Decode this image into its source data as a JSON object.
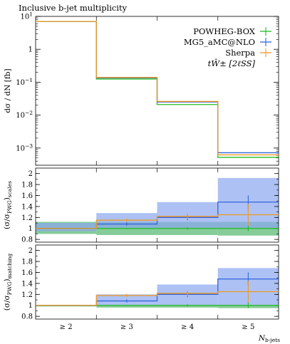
{
  "title": "Inclusive b-jet multiplicity",
  "colors": {
    "POWHEG-BOX": "#22bb22",
    "MG5_aMC@NLO": "#3366dd",
    "Sherpa": "#ee9922",
    "scale_band_green": "#33aa55",
    "scale_band_blue": "#8aa6f0"
  },
  "x_tick_labels": [
    "≥ 2",
    "≥ 3",
    "≥ 4",
    "≥ 5"
  ],
  "x_axis_label": "N",
  "x_axis_label_sub": "b-jets",
  "legend": {
    "entries": [
      "POWHEG-BOX",
      "MG5_aMC@NLO",
      "Sherpa"
    ],
    "process_label": "tW̄± [2ℓSS]",
    "placement": "top-right"
  },
  "chart_data": [
    {
      "type": "step",
      "panel": "main",
      "ylabel": "dσ / dN [fb]",
      "yscale": "log",
      "ylim": [
        0.0003,
        10
      ],
      "y_tick_labels": [
        "10^1",
        "1",
        "10^−1",
        "10^−2",
        "10^−3"
      ],
      "categories": [
        "≥ 2",
        "≥ 3",
        "≥ 4",
        "≥ 5"
      ],
      "series": [
        {
          "name": "POWHEG-BOX",
          "values": [
            7.0,
            0.125,
            0.021,
            0.00052
          ]
        },
        {
          "name": "MG5_aMC@NLO",
          "values": [
            7.0,
            0.135,
            0.025,
            0.00072
          ]
        },
        {
          "name": "Sherpa",
          "values": [
            7.0,
            0.14,
            0.026,
            0.00062
          ]
        }
      ]
    },
    {
      "type": "step",
      "panel": "ratio_scales",
      "ylabel_prefix": "(σ/σ",
      "ylabel_sub1": "PWG",
      "ylabel_mid": ")",
      "ylabel_sub2": "scales",
      "ylim": [
        0.75,
        2.1
      ],
      "y_ticks": [
        0.8,
        1,
        1.2,
        1.4,
        1.6,
        1.8,
        2
      ],
      "y_tick_labels": [
        "0.8",
        "1",
        "1.2",
        "1.4",
        "1.6",
        "1.8",
        "2"
      ],
      "bands": [
        {
          "name": "POWHEG-BOX",
          "lo": [
            0.9,
            0.88,
            0.88,
            0.87
          ],
          "hi": [
            1.12,
            1.12,
            1.12,
            1.12
          ]
        },
        {
          "name": "MG5_aMC@NLO",
          "lo": [
            0.95,
            1.0,
            1.0,
            1.0
          ],
          "hi": [
            1.1,
            1.28,
            1.48,
            1.92
          ]
        }
      ],
      "series": [
        {
          "name": "POWHEG-BOX",
          "values": [
            1.0,
            1.0,
            1.0,
            1.0
          ],
          "err": [
            0.0,
            0.01,
            0.02,
            0.05
          ]
        },
        {
          "name": "MG5_aMC@NLO",
          "values": [
            1.0,
            1.08,
            1.2,
            1.48
          ],
          "err": [
            0.0,
            0.03,
            0.05,
            0.12
          ]
        },
        {
          "name": "Sherpa",
          "values": [
            1.0,
            1.15,
            1.22,
            1.25
          ],
          "err": [
            0.0,
            0.03,
            0.05,
            0.2
          ]
        }
      ]
    },
    {
      "type": "step",
      "panel": "ratio_matching",
      "ylabel_prefix": "(σ/σ",
      "ylabel_sub1": "PWG",
      "ylabel_mid": ")",
      "ylabel_sub2": "matching",
      "ylim": [
        0.75,
        2.1
      ],
      "y_ticks": [
        0.8,
        1,
        1.2,
        1.4,
        1.6,
        1.8,
        2
      ],
      "y_tick_labels": [
        "0.8",
        "1",
        "1.2",
        "1.4",
        "1.6",
        "1.8",
        "2"
      ],
      "bands": [
        {
          "name": "POWHEG-BOX",
          "lo": [
            0.98,
            0.96,
            0.96,
            0.95
          ],
          "hi": [
            1.0,
            1.0,
            1.0,
            1.0
          ]
        },
        {
          "name": "MG5_aMC@NLO",
          "lo": [
            1.0,
            1.0,
            1.0,
            1.0
          ],
          "hi": [
            1.0,
            1.2,
            1.38,
            1.68
          ]
        }
      ],
      "series": [
        {
          "name": "POWHEG-BOX",
          "values": [
            1.0,
            1.0,
            1.0,
            1.0
          ],
          "err": [
            0.0,
            0.01,
            0.02,
            0.05
          ]
        },
        {
          "name": "MG5_aMC@NLO",
          "values": [
            1.0,
            1.08,
            1.2,
            1.48
          ],
          "err": [
            0.0,
            0.03,
            0.05,
            0.12
          ]
        },
        {
          "name": "Sherpa",
          "values": [
            1.0,
            1.18,
            1.22,
            1.25
          ],
          "err": [
            0.0,
            0.03,
            0.05,
            0.2
          ]
        }
      ]
    }
  ]
}
